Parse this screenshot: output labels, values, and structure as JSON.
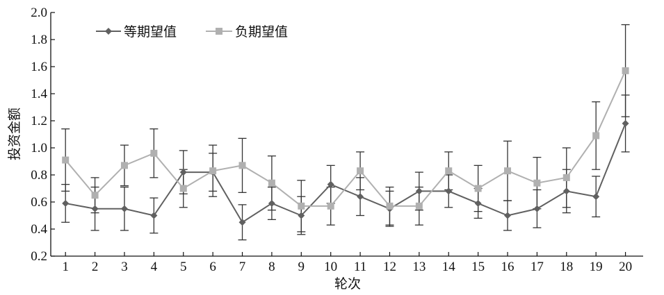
{
  "chart_data": {
    "type": "line",
    "x": [
      1,
      2,
      3,
      4,
      5,
      6,
      7,
      8,
      9,
      10,
      11,
      12,
      13,
      14,
      15,
      16,
      17,
      18,
      19,
      20
    ],
    "xlabel": "轮次",
    "ylabel": "投资金额",
    "ylim": [
      0.2,
      2.0
    ],
    "yticks": [
      "0.2",
      "0.4",
      "0.6",
      "0.8",
      "1.0",
      "1.2",
      "1.4",
      "1.6",
      "1.8",
      "2.0"
    ],
    "xticks": [
      "1",
      "2",
      "3",
      "4",
      "5",
      "6",
      "7",
      "8",
      "9",
      "10",
      "11",
      "12",
      "13",
      "14",
      "15",
      "16",
      "17",
      "18",
      "19",
      "20"
    ],
    "grid": false,
    "legend_position": "top-left",
    "error_bars": true,
    "series": [
      {
        "name": "等期望值",
        "marker": "diamond",
        "color": "#606060",
        "values": [
          0.59,
          0.55,
          0.55,
          0.5,
          0.82,
          0.82,
          0.45,
          0.59,
          0.5,
          0.73,
          0.64,
          0.55,
          0.68,
          0.68,
          0.59,
          0.5,
          0.55,
          0.68,
          0.64,
          1.18
        ],
        "error": [
          0.14,
          0.16,
          0.16,
          0.13,
          0.16,
          0.14,
          0.13,
          0.12,
          0.14,
          0.14,
          0.14,
          0.13,
          0.14,
          0.12,
          0.11,
          0.11,
          0.14,
          0.16,
          0.15,
          0.21
        ]
      },
      {
        "name": "负期望值",
        "marker": "square",
        "color": "#b0b0b0",
        "values": [
          0.91,
          0.65,
          0.87,
          0.96,
          0.7,
          0.83,
          0.87,
          0.74,
          0.57,
          0.57,
          0.83,
          0.57,
          0.57,
          0.83,
          0.7,
          0.83,
          0.74,
          0.78,
          1.09,
          1.57
        ],
        "error": [
          0.23,
          0.13,
          0.15,
          0.18,
          0.14,
          0.19,
          0.2,
          0.2,
          0.19,
          0.14,
          0.14,
          0.14,
          0.14,
          0.14,
          0.17,
          0.22,
          0.19,
          0.22,
          0.25,
          0.34
        ]
      }
    ]
  }
}
